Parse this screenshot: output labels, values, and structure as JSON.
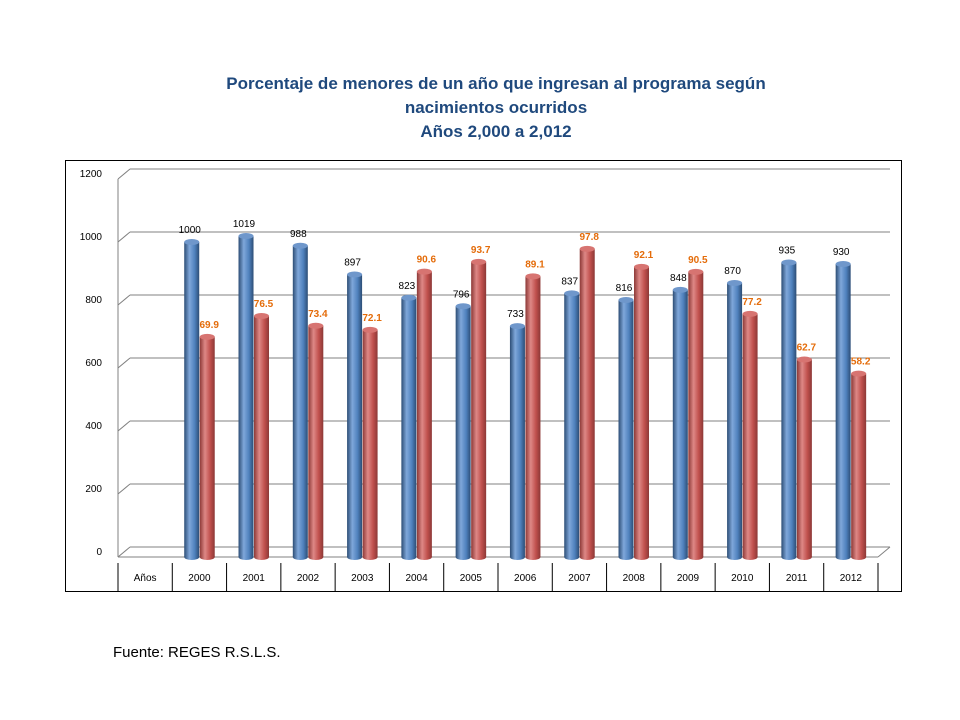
{
  "title_lines": [
    "Porcentaje de menores de un año que ingresan al programa según",
    "nacimientos ocurridos",
    "Años 2,000 a 2,012"
  ],
  "source": "Fuente: REGES R.S.L.S.",
  "colors": {
    "series1": "#4F81BD",
    "series2": "#C0504D",
    "label2": "#E46C0A",
    "title": "#1F497D"
  },
  "chart_data": {
    "type": "bar",
    "first_category_label": "Años",
    "categories": [
      "2000",
      "2001",
      "2002",
      "2003",
      "2004",
      "2005",
      "2006",
      "2007",
      "2008",
      "2009",
      "2010",
      "2011",
      "2012"
    ],
    "ylim": [
      0,
      1200
    ],
    "yticks": [
      0,
      200,
      400,
      600,
      800,
      1000,
      1200
    ],
    "grid": true,
    "legend": "none",
    "series": [
      {
        "values": [
          1000,
          1019,
          988,
          897,
          823,
          796,
          733,
          837,
          816,
          848,
          870,
          935,
          930
        ],
        "labels": [
          "1000",
          "1019",
          "988",
          "897",
          "823",
          "796",
          "733",
          "837",
          "816",
          "848",
          "870",
          "935",
          "930"
        ]
      },
      {
        "values": [
          69.9,
          76.5,
          73.4,
          72.1,
          90.6,
          93.7,
          89.1,
          97.8,
          92.1,
          90.5,
          77.2,
          62.7,
          58.2
        ],
        "labels": [
          "69.9",
          "76.5",
          "73.4",
          "72.1",
          "90.6",
          "93.7",
          "89.1",
          "97.8",
          "92.1",
          "90.5",
          "77.2",
          "62.7",
          "58.2"
        ]
      }
    ]
  }
}
